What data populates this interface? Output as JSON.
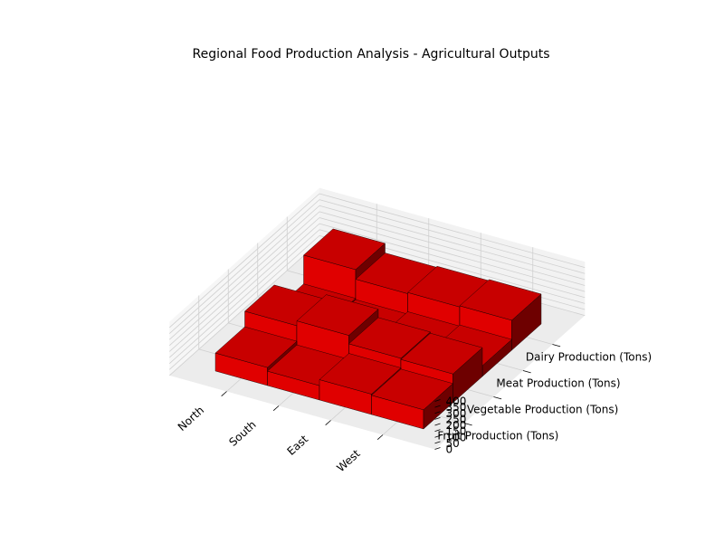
{
  "chart_data": {
    "type": "bar3d",
    "title": "Regional Food Production Analysis - Agricultural Outputs",
    "categories": [
      "North",
      "South",
      "East",
      "West"
    ],
    "series": [
      {
        "name": "Fruit Production (Tons)",
        "values": [
          150,
          120,
          170,
          160
        ]
      },
      {
        "name": "Vegetable Production (Tons)",
        "values": [
          280,
          320,
          250,
          240
        ]
      },
      {
        "name": "Meat Production (Tons)",
        "values": [
          70,
          60,
          80,
          90
        ]
      },
      {
        "name": "Dairy Production (Tons)",
        "values": [
          310,
          230,
          240,
          250
        ]
      }
    ],
    "zlim": [
      0,
      400
    ],
    "z_ticks": [
      0,
      50,
      100,
      150,
      200,
      250,
      300,
      350,
      400
    ],
    "colors": {
      "bar_top": "#c80000",
      "bar_front": "#e00000",
      "bar_side": "#6e0000",
      "bar_edge": "#000000",
      "pane_back": "#f2f2f2",
      "pane_side": "#f6f6f6",
      "pane_floor": "#ececec",
      "grid": "#cfcfcf"
    },
    "grid": true
  }
}
